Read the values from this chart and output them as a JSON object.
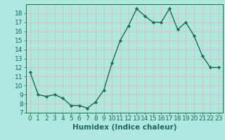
{
  "x": [
    0,
    1,
    2,
    3,
    4,
    5,
    6,
    7,
    8,
    9,
    10,
    11,
    12,
    13,
    14,
    15,
    16,
    17,
    18,
    19,
    20,
    21,
    22,
    23
  ],
  "y": [
    11.5,
    9.0,
    8.8,
    9.0,
    8.6,
    7.8,
    7.8,
    7.5,
    8.2,
    9.5,
    12.5,
    15.0,
    16.6,
    18.5,
    17.7,
    17.0,
    17.0,
    18.5,
    16.2,
    17.0,
    15.5,
    13.3,
    12.0,
    12.0
  ],
  "line_color": "#1a6b5a",
  "marker_color": "#1a6b5a",
  "bg_color": "#aee8df",
  "grid_color": "#e8b0b0",
  "xlabel": "Humidex (Indice chaleur)",
  "xlim": [
    -0.5,
    23.5
  ],
  "ylim": [
    7,
    19
  ],
  "yticks": [
    7,
    8,
    9,
    10,
    11,
    12,
    13,
    14,
    15,
    16,
    17,
    18
  ],
  "xticks": [
    0,
    1,
    2,
    3,
    4,
    5,
    6,
    7,
    8,
    9,
    10,
    11,
    12,
    13,
    14,
    15,
    16,
    17,
    18,
    19,
    20,
    21,
    22,
    23
  ],
  "font_size": 6.5,
  "label_font_size": 7.5
}
